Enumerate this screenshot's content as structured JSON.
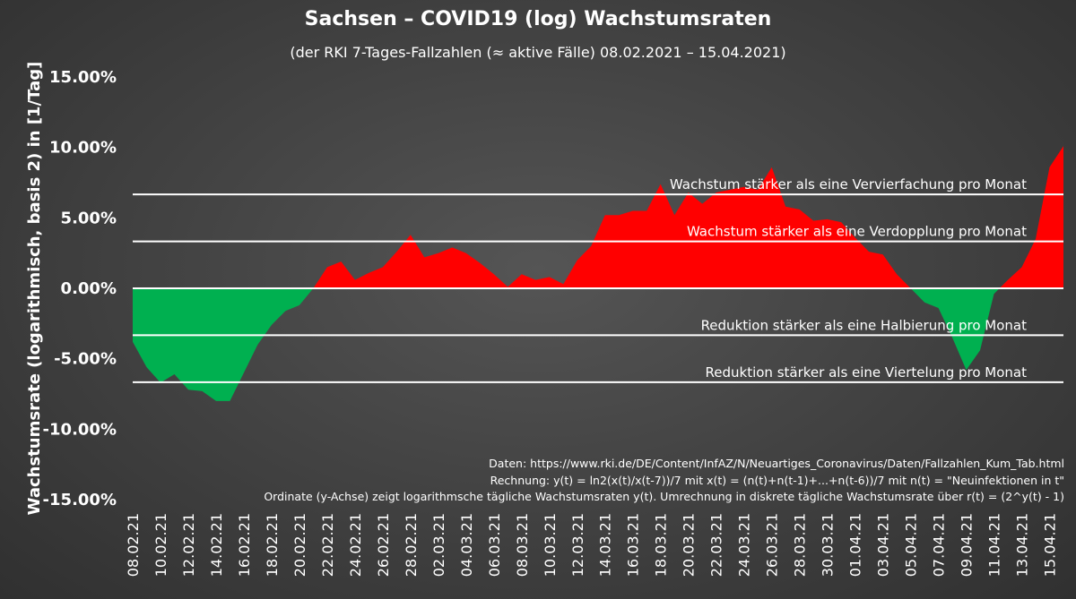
{
  "chart_data": {
    "type": "area",
    "title": "Sachsen – COVID19  (log) Wachstumsraten",
    "subtitle": "(der RKI 7-Tages-Fallzahlen (≈ aktive Fälle) 08.02.2021 – 15.04.2021)",
    "ylabel": "Wachstumsrate (logarithmisch, basis 2) in [1/Tag]",
    "xlabel": "",
    "ylim": [
      -15,
      15
    ],
    "y_unit": "%",
    "yticks": [
      "15.00%",
      "10.00%",
      "5.00%",
      "0.00%",
      "-5.00%",
      "-10.00%",
      "-15.00%"
    ],
    "ytick_values": [
      15,
      10,
      5,
      0,
      -5,
      -10,
      -15
    ],
    "xticks": [
      "08.02.21",
      "10.02.21",
      "12.02.21",
      "14.02.21",
      "16.02.21",
      "18.02.21",
      "20.02.21",
      "22.02.21",
      "24.02.21",
      "26.02.21",
      "28.02.21",
      "02.03.21",
      "04.03.21",
      "06.03.21",
      "08.03.21",
      "10.03.21",
      "12.03.21",
      "14.03.21",
      "16.03.21",
      "18.03.21",
      "20.03.21",
      "22.03.21",
      "24.03.21",
      "26.03.21",
      "28.03.21",
      "30.03.21",
      "01.04.21",
      "03.04.21",
      "05.04.21",
      "07.04.21",
      "09.04.21",
      "11.04.21",
      "13.04.21",
      "15.04.21"
    ],
    "grid": false,
    "positive_color": "#ff0000",
    "negative_color": "#00b050",
    "series": [
      {
        "values": [
          -3.8,
          -5.6,
          -6.7,
          -6.1,
          -7.2,
          -7.3,
          -8.0,
          -8.0,
          -6.0,
          -4.0,
          -2.6,
          -1.6,
          -1.2,
          0.0,
          1.5,
          1.9,
          0.6,
          1.1,
          1.5,
          2.6,
          3.8,
          2.2,
          2.5,
          2.9,
          2.5,
          1.8,
          1.0,
          0.1,
          1.0,
          0.6,
          0.8,
          0.3,
          2.0,
          3.0,
          5.2,
          5.2,
          5.5,
          5.5,
          7.4,
          5.2,
          6.8,
          6.0,
          6.8,
          7.0,
          7.2,
          7.0,
          8.6,
          5.8,
          5.6,
          4.8,
          4.9,
          4.7,
          3.6,
          2.6,
          2.4,
          1.0,
          0.0,
          -1.0,
          -1.4,
          -3.5,
          -5.8,
          -4.4,
          -0.4,
          0.6,
          1.5,
          3.5,
          8.6,
          10.1
        ]
      }
    ],
    "reference_lines": [
      {
        "value": 6.67,
        "label": "Wachstum stärker als eine Vervierfachung pro Monat"
      },
      {
        "value": 3.33,
        "label": "Wachstum stärker als eine Verdopplung pro Monat"
      },
      {
        "value": 0,
        "label": ""
      },
      {
        "value": -3.33,
        "label": "Reduktion stärker als eine Halbierung pro Monat"
      },
      {
        "value": -6.67,
        "label": "Reduktion stärker als eine Viertelung pro Monat"
      }
    ],
    "notes": [
      "Daten: https://www.rki.de/DE/Content/InfAZ/N/Neuartiges_Coronavirus/Daten/Fallzahlen_Kum_Tab.html",
      "Rechnung: y(t) = ln2(x(t)/x(t-7))/7 mit x(t) = (n(t)+n(t-1)+...+n(t-6))/7 mit n(t) = \"Neuinfektionen in t\"",
      "Ordinate (y-Achse) zeigt logarithmsche tägliche Wachstumsraten y(t). Umrechnung in diskrete tägliche Wachstumsrate über r(t) = (2^y(t) - 1)"
    ]
  }
}
